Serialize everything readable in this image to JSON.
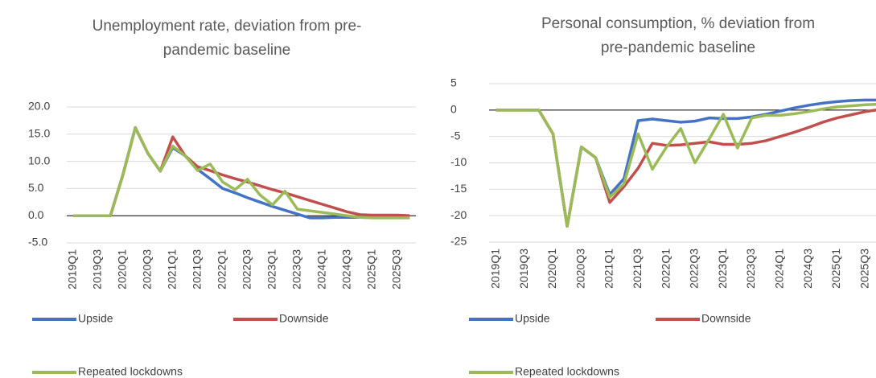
{
  "chart_data": [
    {
      "type": "line",
      "title": [
        "Unemployment rate, deviation from pre-",
        "pandemic baseline"
      ],
      "categories": [
        "2019Q1",
        null,
        "2019Q3",
        null,
        "2020Q1",
        null,
        "2020Q3",
        null,
        "2021Q1",
        null,
        "2021Q3",
        null,
        "2022Q1",
        null,
        "2022Q3",
        null,
        "2023Q1",
        null,
        "2023Q3",
        null,
        "2024Q1",
        null,
        "2024Q3",
        null,
        "2025Q1",
        null,
        "2025Q3",
        null
      ],
      "series": [
        {
          "name": "Upside",
          "color": "#4472c4",
          "values": [
            0,
            0,
            0,
            0,
            7.5,
            16.2,
            11.5,
            8.2,
            12.5,
            11,
            8.5,
            6.8,
            5,
            4.2,
            3.3,
            2.5,
            1.7,
            1.0,
            0.3,
            -0.4,
            -0.4,
            -0.3,
            -0.3,
            -0.3,
            -0.3,
            -0.3,
            -0.3,
            -0.3
          ]
        },
        {
          "name": "Downside",
          "color": "#c0504d",
          "values": [
            0,
            0,
            0,
            0,
            7.5,
            16.2,
            11.5,
            8.2,
            14.5,
            11,
            9,
            8.3,
            7.5,
            6.8,
            6.2,
            5.5,
            4.8,
            4.2,
            3.5,
            2.8,
            2.1,
            1.4,
            0.7,
            0.2,
            0.1,
            0.1,
            0.1,
            0.0
          ]
        },
        {
          "name": "Repeated lockdowns",
          "color": "#9bbb59",
          "values": [
            0,
            0,
            0,
            0,
            7.5,
            16.2,
            11.5,
            8.2,
            12.8,
            11,
            8.3,
            9.5,
            6.2,
            4.8,
            6.7,
            3.8,
            2.0,
            4.5,
            1.2,
            0.9,
            0.6,
            0.3,
            0,
            -0.3,
            -0.4,
            -0.4,
            -0.4,
            -0.4
          ]
        }
      ],
      "ylim": [
        -5,
        20
      ],
      "yticks": [
        {
          "value": -5,
          "label": "-5.0"
        },
        {
          "value": 0,
          "label": "0.0"
        },
        {
          "value": 5,
          "label": "5.0"
        },
        {
          "value": 10,
          "label": "10.0"
        },
        {
          "value": 15,
          "label": "15.0"
        },
        {
          "value": 20,
          "label": "20.0"
        }
      ],
      "grid": true,
      "legend": "bottom"
    },
    {
      "type": "line",
      "title": [
        "Personal consumption, % deviation from",
        "pre-pandemic baseline"
      ],
      "categories": [
        "2019Q1",
        null,
        "2019Q3",
        null,
        "2020Q1",
        null,
        "2020Q3",
        null,
        "2021Q1",
        null,
        "2021Q3",
        null,
        "2022Q1",
        null,
        "2022Q3",
        null,
        "2023Q1",
        null,
        "2023Q3",
        null,
        "2024Q1",
        null,
        "2024Q3",
        null,
        "2025Q1",
        null,
        "2025Q3",
        null
      ],
      "series": [
        {
          "name": "Upside",
          "color": "#4472c4",
          "values": [
            0,
            0,
            0,
            0,
            -4.5,
            -22,
            -7,
            -9,
            -16,
            -13,
            -2,
            -1.7,
            -2,
            -2.3,
            -2.1,
            -1.5,
            -1.6,
            -1.6,
            -1.3,
            -0.8,
            -0.2,
            0.4,
            0.9,
            1.3,
            1.6,
            1.8,
            1.9,
            1.9
          ]
        },
        {
          "name": "Downside",
          "color": "#c0504d",
          "values": [
            0,
            0,
            0,
            0,
            -4.5,
            -22,
            -7,
            -9,
            -17.5,
            -14.5,
            -11,
            -6.3,
            -6.7,
            -6.6,
            -6.3,
            -6.0,
            -6.5,
            -6.5,
            -6.3,
            -5.8,
            -5.0,
            -4.2,
            -3.3,
            -2.3,
            -1.5,
            -0.9,
            -0.3,
            0.1
          ]
        },
        {
          "name": "Repeated lockdowns",
          "color": "#9bbb59",
          "values": [
            0,
            0,
            0,
            0,
            -4.5,
            -22,
            -7,
            -9,
            -16.5,
            -14,
            -4.5,
            -11.2,
            -7,
            -3.5,
            -10,
            -5.5,
            -0.8,
            -7.2,
            -1.5,
            -1.0,
            -1.0,
            -0.7,
            -0.3,
            0.2,
            0.6,
            0.8,
            1.0,
            1.1
          ]
        }
      ],
      "ylim": [
        -25,
        5
      ],
      "yticks": [
        -25,
        -20,
        -15,
        -10,
        -5,
        0,
        5
      ],
      "grid": true,
      "legend": "bottom"
    }
  ]
}
